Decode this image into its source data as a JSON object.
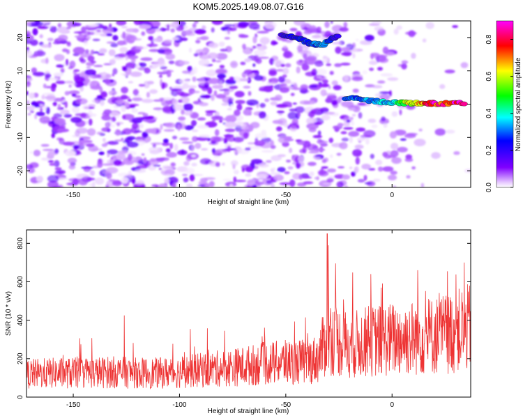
{
  "figure": {
    "title": "KOM5.2025.149.08.07.G16"
  },
  "chart_data": [
    {
      "type": "heatmap",
      "title": "KOM5.2025.149.08.07.G16",
      "xlabel": "Height of straight line (km)",
      "ylabel": "Frequency (Hz)",
      "xlim": [
        -172,
        37
      ],
      "ylim": [
        -25,
        25
      ],
      "xticks": [
        -150,
        -100,
        -50,
        0
      ],
      "yticks": [
        -20,
        -10,
        0,
        10,
        20
      ],
      "colorbar": {
        "label": "Normalized spectral amplitude",
        "range": [
          0,
          0.9
        ],
        "ticks": [
          0.0,
          0.2,
          0.4,
          0.6,
          0.8
        ],
        "colormap": "rainbow",
        "colors": [
          "#ffffff",
          "#8000ff",
          "#0000ff",
          "#00ffff",
          "#00ff00",
          "#ffff00",
          "#ff0000",
          "#ff00ff"
        ]
      },
      "features": [
        {
          "name": "",
          "x": [
            -22,
            -10,
            0,
            10,
            20,
            35
          ],
          "y": [
            2,
            1,
            0.5,
            0.3,
            0.2,
            0.2
          ],
          "amplitude": [
            0.3,
            0.35,
            0.4,
            0.7,
            0.85,
            0.9
          ]
        },
        {
          "name": "",
          "x": [
            -52,
            -45,
            -38,
            -32,
            -25
          ],
          "y": [
            21,
            20,
            18,
            18,
            21
          ],
          "amplitude": [
            0.2,
            0.25,
            0.3,
            0.35,
            0.2
          ]
        }
      ]
    },
    {
      "type": "line",
      "xlabel": "Height of straight line (km)",
      "ylabel": "SNR (10 * v/v)",
      "xlim": [
        -172,
        37
      ],
      "ylim": [
        0,
        870
      ],
      "xticks": [
        -150,
        -100,
        -50,
        0
      ],
      "yticks": [
        0,
        200,
        400,
        600,
        800
      ],
      "grid": false,
      "color": "#ee3333",
      "series": [
        {
          "x": [
            -172,
            -160,
            -150,
            -140,
            -130,
            -120,
            -110,
            -100,
            -90,
            -80,
            -70,
            -60,
            -50,
            -40,
            -35,
            -30,
            -25,
            -20,
            -10,
            0,
            10,
            20,
            30,
            37
          ],
          "mean": [
            120,
            125,
            125,
            128,
            130,
            125,
            125,
            130,
            140,
            150,
            160,
            175,
            180,
            185,
            200,
            320,
            290,
            270,
            290,
            300,
            310,
            320,
            340,
            360
          ],
          "peaks": [
            {
              "x": -30.5,
              "y": 850
            },
            {
              "x": -30,
              "y": 790
            },
            {
              "x": -126,
              "y": 425
            },
            {
              "x": 34,
              "y": 700
            },
            {
              "x": 12,
              "y": 660
            },
            {
              "x": -10,
              "y": 640
            }
          ]
        }
      ]
    }
  ]
}
